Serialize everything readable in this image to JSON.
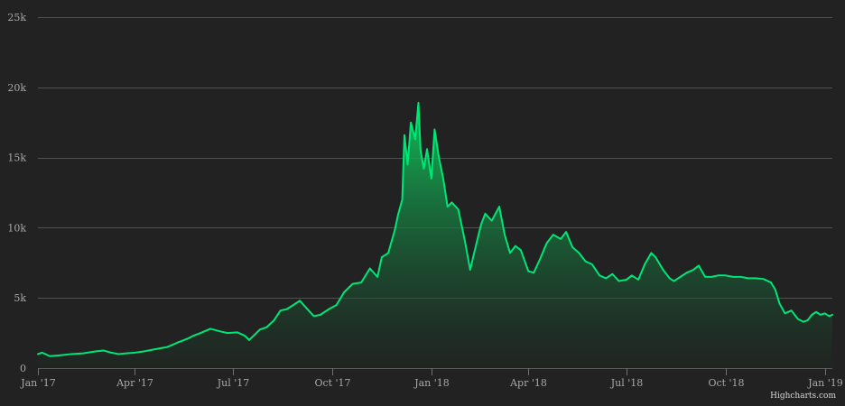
{
  "chart_data": {
    "type": "area",
    "title": "",
    "xlabel": "",
    "ylabel": "",
    "grid": true,
    "legend": "none",
    "series_color": "#00e676",
    "fill_gradient": [
      "#11c95c",
      "#1c2a22"
    ],
    "xlim": [
      "2017-01-01",
      "2019-01-08"
    ],
    "ylim": [
      0,
      25000
    ],
    "y_ticks": [
      0,
      5000,
      10000,
      15000,
      20000,
      25000
    ],
    "y_tick_labels": [
      "0",
      "5k",
      "10k",
      "15k",
      "20k",
      "25k"
    ],
    "x_ticks": [
      "2017-01-01",
      "2017-04-01",
      "2017-07-01",
      "2017-10-01",
      "2018-01-01",
      "2018-04-01",
      "2018-07-01",
      "2018-10-01",
      "2019-01-01"
    ],
    "x_tick_labels": [
      "Jan '17",
      "Apr '17",
      "Jul '17",
      "Oct '17",
      "Jan '18",
      "Apr '18",
      "Jul '18",
      "Oct '18",
      "Jan '19"
    ],
    "series": [
      {
        "x": [
          "2017-01-01",
          "2017-01-05",
          "2017-01-12",
          "2017-01-20",
          "2017-02-01",
          "2017-02-12",
          "2017-02-24",
          "2017-03-03",
          "2017-03-10",
          "2017-03-17",
          "2017-03-24",
          "2017-04-01",
          "2017-04-10",
          "2017-04-20",
          "2017-05-01",
          "2017-05-10",
          "2017-05-20",
          "2017-05-25",
          "2017-06-01",
          "2017-06-10",
          "2017-06-20",
          "2017-06-26",
          "2017-07-05",
          "2017-07-12",
          "2017-07-16",
          "2017-07-20",
          "2017-07-26",
          "2017-08-01",
          "2017-08-08",
          "2017-08-14",
          "2017-08-20",
          "2017-08-26",
          "2017-09-01",
          "2017-09-08",
          "2017-09-14",
          "2017-09-20",
          "2017-09-28",
          "2017-10-05",
          "2017-10-12",
          "2017-10-20",
          "2017-10-28",
          "2017-11-05",
          "2017-11-12",
          "2017-11-16",
          "2017-11-22",
          "2017-11-28",
          "2017-12-01",
          "2017-12-05",
          "2017-12-07",
          "2017-12-10",
          "2017-12-13",
          "2017-12-17",
          "2017-12-20",
          "2017-12-22",
          "2017-12-25",
          "2017-12-28",
          "2018-01-01",
          "2018-01-04",
          "2018-01-08",
          "2018-01-12",
          "2018-01-16",
          "2018-01-20",
          "2018-01-26",
          "2018-02-01",
          "2018-02-06",
          "2018-02-10",
          "2018-02-16",
          "2018-02-20",
          "2018-02-26",
          "2018-03-05",
          "2018-03-10",
          "2018-03-15",
          "2018-03-20",
          "2018-03-25",
          "2018-04-01",
          "2018-04-06",
          "2018-04-12",
          "2018-04-18",
          "2018-04-24",
          "2018-05-01",
          "2018-05-06",
          "2018-05-12",
          "2018-05-18",
          "2018-05-24",
          "2018-05-30",
          "2018-06-06",
          "2018-06-12",
          "2018-06-18",
          "2018-06-24",
          "2018-07-01",
          "2018-07-06",
          "2018-07-12",
          "2018-07-18",
          "2018-07-24",
          "2018-07-28",
          "2018-08-04",
          "2018-08-10",
          "2018-08-14",
          "2018-08-20",
          "2018-08-26",
          "2018-09-01",
          "2018-09-06",
          "2018-09-12",
          "2018-09-18",
          "2018-09-24",
          "2018-10-01",
          "2018-10-08",
          "2018-10-15",
          "2018-10-22",
          "2018-10-29",
          "2018-11-05",
          "2018-11-12",
          "2018-11-16",
          "2018-11-20",
          "2018-11-25",
          "2018-12-01",
          "2018-12-07",
          "2018-12-12",
          "2018-12-16",
          "2018-12-20",
          "2018-12-24",
          "2018-12-28",
          "2019-01-01",
          "2019-01-05",
          "2019-01-08"
        ],
        "values": [
          1000,
          1100,
          850,
          900,
          1000,
          1050,
          1200,
          1250,
          1100,
          1000,
          1050,
          1100,
          1200,
          1350,
          1500,
          1800,
          2100,
          2300,
          2500,
          2800,
          2600,
          2500,
          2550,
          2300,
          2000,
          2300,
          2750,
          2900,
          3400,
          4100,
          4200,
          4500,
          4800,
          4200,
          3700,
          3800,
          4200,
          4500,
          5400,
          6000,
          6100,
          7100,
          6500,
          7900,
          8200,
          9800,
          10900,
          12000,
          16600,
          14500,
          17500,
          16300,
          18900,
          15500,
          14200,
          15600,
          13500,
          17000,
          15000,
          13500,
          11500,
          11800,
          11300,
          9100,
          7000,
          8300,
          10200,
          11000,
          10500,
          11500,
          9500,
          8200,
          8700,
          8400,
          6900,
          6800,
          7800,
          8900,
          9500,
          9200,
          9700,
          8600,
          8200,
          7600,
          7400,
          6600,
          6400,
          6700,
          6200,
          6300,
          6600,
          6300,
          7400,
          8200,
          7900,
          7000,
          6400,
          6200,
          6500,
          6800,
          7000,
          7300,
          6500,
          6500,
          6600,
          6600,
          6500,
          6500,
          6400,
          6400,
          6350,
          6100,
          5600,
          4600,
          3900,
          4100,
          3500,
          3300,
          3400,
          3800,
          4000,
          3800,
          3900,
          3700,
          3800
        ]
      }
    ]
  },
  "credit": "Highcharts.com"
}
